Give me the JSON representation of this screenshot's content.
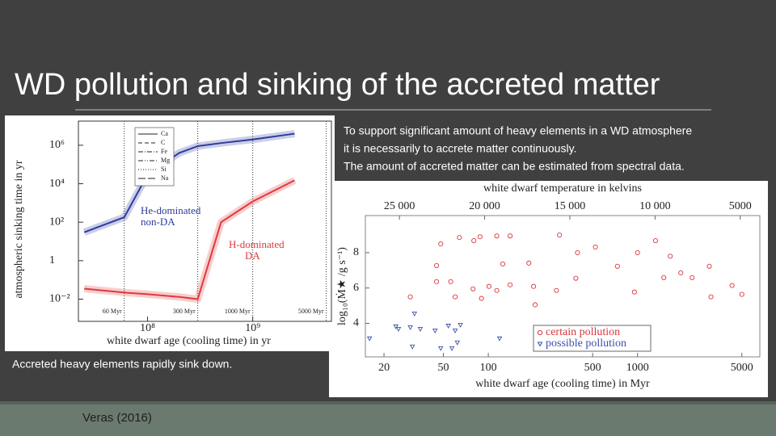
{
  "slide": {
    "title": "WD pollution and sinking of the accreted matter",
    "body_lines": [
      "To support significant amount of heavy elements in a WD atmosphere",
      "it is necessarily to accrete matter continuously.",
      "The amount of accreted matter can be estimated from spectral data."
    ],
    "caption": "Accreted heavy elements rapidly sink down.",
    "citation": "Veras (2016)"
  },
  "chart_data": [
    {
      "type": "line",
      "xlabel": "white dwarf age (cooling time) in yr",
      "ylabel": "atmospheric sinking time in yr",
      "log_x": true,
      "log_y": true,
      "xlim": [
        22000000,
        5600000000
      ],
      "ylim": [
        0.0007,
        18000000
      ],
      "xticks": [
        {
          "value": 100000000,
          "label": "10⁸"
        },
        {
          "value": 1000000000,
          "label": "10⁹"
        }
      ],
      "yticks": [
        {
          "value": 0.01,
          "label": "10⁻²"
        },
        1,
        {
          "value": 100,
          "label": "10²"
        },
        {
          "value": 10000,
          "label": "10⁴"
        },
        {
          "value": 1000000,
          "label": "10⁶"
        }
      ],
      "vlines": [
        {
          "value": 60000000,
          "label": "60 Myr"
        },
        {
          "value": 300000000,
          "label": "300 Myr"
        },
        {
          "value": 1000000000,
          "label": "1000 Myr"
        },
        {
          "value": 5000000000,
          "label": "5000 Myr"
        }
      ],
      "legend": [
        {
          "label": "Ca",
          "dash": "solid"
        },
        {
          "label": "C",
          "dash": "dashed"
        },
        {
          "label": "Fe",
          "dash": "dashdot"
        },
        {
          "label": "Mg",
          "dash": "dashdotdot"
        },
        {
          "label": "Si",
          "dash": "dotted"
        },
        {
          "label": "Na",
          "dash": "longdash"
        }
      ],
      "x": [
        25000000,
        60000000,
        100000000,
        200000000,
        300000000,
        500000000,
        1000000000,
        2500000000
      ],
      "series": [
        {
          "name_lines": [
            "He-dominated",
            "non-DA"
          ],
          "color": "#2d3b9c",
          "values": [
            30,
            180,
            30000,
            400000,
            900000,
            1300000,
            2000000,
            4000000
          ]
        },
        {
          "name_lines": [
            "H-dominated",
            "DA"
          ],
          "color": "#e0393b",
          "values": [
            0.035,
            0.022,
            0.018,
            0.013,
            0.01,
            100,
            1200,
            15000
          ]
        }
      ]
    },
    {
      "type": "scatter",
      "xlabel": "white dwarf age (cooling time) in Myr",
      "x2label": "white dwarf temperature in kelvins",
      "ylabel": "log₁₀(Ṁ★ /g s⁻¹)",
      "log_x": true,
      "xlim": [
        15,
        6600
      ],
      "ylim": [
        2.1,
        10.1
      ],
      "x2lim": [
        27000,
        3850
      ],
      "xticks": [
        20,
        50,
        100,
        500,
        1000,
        5000
      ],
      "x2ticks": [
        {
          "value": 25000,
          "label": "25 000"
        },
        {
          "value": 20000,
          "label": "20 000"
        },
        {
          "value": 15000,
          "label": "15 000"
        },
        {
          "value": 10000,
          "label": "10 000"
        },
        5000
      ],
      "yticks": [
        4,
        6,
        8
      ],
      "series": [
        {
          "name": "certain pollution",
          "color": "#d9363e",
          "marker": "circle",
          "x": [
            30,
            48,
            64,
            80,
            88,
            114,
            140,
            300,
            187,
            125,
            45,
            45,
            56,
            79,
            60,
            101,
            90,
            114,
            140,
            201,
            396,
            386,
            522,
            733,
            1000,
            953,
            1321,
            1656,
            1950,
            1500,
            2323,
            3027,
            3105,
            4300,
            5000,
            206,
            286
          ],
          "values": [
            5.5,
            8.5,
            8.86,
            8.68,
            8.9,
            8.95,
            8.95,
            9.0,
            7.41,
            7.36,
            7.27,
            6.36,
            6.36,
            5.95,
            5.5,
            6.09,
            5.41,
            5.86,
            6.18,
            6.09,
            8.0,
            6.55,
            8.32,
            7.23,
            8.0,
            5.77,
            8.68,
            7.8,
            6.86,
            6.59,
            6.59,
            7.23,
            5.5,
            6.14,
            5.64,
            5.05,
            5.86
          ]
        },
        {
          "name": "possible pollution",
          "color": "#3a4fa8",
          "marker": "triangle",
          "x": [
            16,
            24,
            25,
            30,
            35,
            44,
            54,
            60,
            65,
            48,
            57,
            62,
            31,
            32,
            119
          ],
          "values": [
            3.14,
            3.82,
            3.68,
            3.77,
            3.68,
            3.59,
            3.86,
            3.59,
            3.91,
            2.59,
            2.59,
            2.91,
            2.68,
            4.55,
            3.14
          ]
        }
      ]
    }
  ]
}
